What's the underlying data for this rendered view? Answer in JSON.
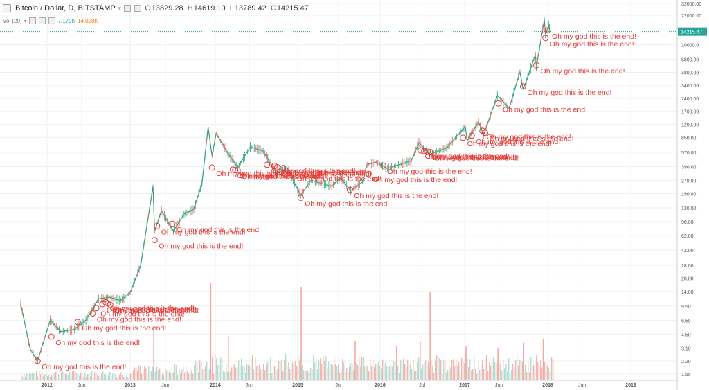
{
  "header": {
    "symbol": "Bitcoin / Dollar, D, BITSTAMP",
    "o_label": "O",
    "o": "13829.28",
    "h_label": "H",
    "h": "14619.10",
    "l_label": "L",
    "l": "13789.42",
    "c_label": "C",
    "c": "14215.47"
  },
  "volume": {
    "label": "Vol (20)",
    "v1": "7.179K",
    "v2": "14.028K"
  },
  "chart_data": {
    "type": "line",
    "scale": "log",
    "ylim": [
      1.4,
      34000
    ],
    "y_ticks": [
      "1.55",
      "2.20",
      "3.10",
      "4.50",
      "6.50",
      "9.50",
      "14.00",
      "20.00",
      "28.00",
      "42.00",
      "62.00",
      "90.00",
      "130.00",
      "190.00",
      "270.00",
      "390.00",
      "570.00",
      "850.00",
      "1200.00",
      "1700.00",
      "2400.00",
      "3400.00",
      "4800.00",
      "6800.00",
      "10000.0",
      "22000.00",
      "32000.00"
    ],
    "x_ticks": [
      {
        "date": "2012-01-01",
        "label": "2012"
      },
      {
        "date": "2012-06-01",
        "label": "Jun"
      },
      {
        "date": "2013-01-01",
        "label": "2013"
      },
      {
        "date": "2013-06-01",
        "label": "Jun"
      },
      {
        "date": "2014-01-01",
        "label": "2014"
      },
      {
        "date": "2014-06-01",
        "label": "Jun"
      },
      {
        "date": "2015-01-01",
        "label": "2015"
      },
      {
        "date": "2015-07-01",
        "label": "Jul"
      },
      {
        "date": "2016-01-01",
        "label": "2016"
      },
      {
        "date": "2016-07-01",
        "label": "Jul"
      },
      {
        "date": "2017-01-01",
        "label": "2017"
      },
      {
        "date": "2017-06-01",
        "label": "Jun"
      },
      {
        "date": "2018-01-01",
        "label": "2018"
      },
      {
        "date": "2018-06-01",
        "label": "Jun"
      },
      {
        "date": "2019-01-01",
        "label": "2019"
      }
    ],
    "last_price": "14215.47",
    "price_series": [
      {
        "x": "2011-09-01",
        "y": 10
      },
      {
        "x": "2011-10-15",
        "y": 3.0
      },
      {
        "x": "2011-11-18",
        "y": 2.2
      },
      {
        "x": "2011-12-20",
        "y": 4.0
      },
      {
        "x": "2012-01-15",
        "y": 6.5
      },
      {
        "x": "2012-03-01",
        "y": 4.8
      },
      {
        "x": "2012-05-01",
        "y": 5.1
      },
      {
        "x": "2012-06-20",
        "y": 6.5
      },
      {
        "x": "2012-08-15",
        "y": 11.5
      },
      {
        "x": "2012-10-01",
        "y": 12.0
      },
      {
        "x": "2012-11-20",
        "y": 11.0
      },
      {
        "x": "2013-01-01",
        "y": 13.5
      },
      {
        "x": "2013-02-15",
        "y": 28
      },
      {
        "x": "2013-04-09",
        "y": 230
      },
      {
        "x": "2013-04-16",
        "y": 70
      },
      {
        "x": "2013-05-15",
        "y": 120
      },
      {
        "x": "2013-07-05",
        "y": 70
      },
      {
        "x": "2013-08-20",
        "y": 110
      },
      {
        "x": "2013-10-01",
        "y": 125
      },
      {
        "x": "2013-11-05",
        "y": 250
      },
      {
        "x": "2013-12-01",
        "y": 1120
      },
      {
        "x": "2013-12-18",
        "y": 520
      },
      {
        "x": "2014-01-05",
        "y": 950
      },
      {
        "x": "2014-02-25",
        "y": 560
      },
      {
        "x": "2014-04-10",
        "y": 380
      },
      {
        "x": "2014-06-05",
        "y": 660
      },
      {
        "x": "2014-08-01",
        "y": 590
      },
      {
        "x": "2014-10-01",
        "y": 320
      },
      {
        "x": "2014-11-15",
        "y": 380
      },
      {
        "x": "2015-01-14",
        "y": 180
      },
      {
        "x": "2015-03-01",
        "y": 270
      },
      {
        "x": "2015-06-01",
        "y": 230
      },
      {
        "x": "2015-07-10",
        "y": 290
      },
      {
        "x": "2015-08-24",
        "y": 205
      },
      {
        "x": "2015-10-15",
        "y": 260
      },
      {
        "x": "2015-11-04",
        "y": 410
      },
      {
        "x": "2015-12-15",
        "y": 440
      },
      {
        "x": "2016-02-01",
        "y": 370
      },
      {
        "x": "2016-05-15",
        "y": 455
      },
      {
        "x": "2016-06-17",
        "y": 740
      },
      {
        "x": "2016-08-02",
        "y": 540
      },
      {
        "x": "2016-10-15",
        "y": 640
      },
      {
        "x": "2017-01-04",
        "y": 1130
      },
      {
        "x": "2017-01-12",
        "y": 780
      },
      {
        "x": "2017-03-03",
        "y": 1280
      },
      {
        "x": "2017-03-25",
        "y": 900
      },
      {
        "x": "2017-05-25",
        "y": 2600
      },
      {
        "x": "2017-07-16",
        "y": 1850
      },
      {
        "x": "2017-09-01",
        "y": 4900
      },
      {
        "x": "2017-09-15",
        "y": 3000
      },
      {
        "x": "2017-11-08",
        "y": 7700
      },
      {
        "x": "2017-11-12",
        "y": 5600
      },
      {
        "x": "2017-12-17",
        "y": 19500
      },
      {
        "x": "2017-12-22",
        "y": 13000
      },
      {
        "x": "2018-01-06",
        "y": 17000
      },
      {
        "x": "2018-01-11",
        "y": 14215
      }
    ],
    "volume_series": {
      "type": "bar",
      "spikes": [
        {
          "x": "2013-04-10",
          "v": 0.55
        },
        {
          "x": "2013-12-10",
          "v": 1.0
        },
        {
          "x": "2014-02-25",
          "v": 0.45
        },
        {
          "x": "2015-01-14",
          "v": 0.95
        },
        {
          "x": "2015-09-10",
          "v": 0.4
        },
        {
          "x": "2016-03-10",
          "v": 0.35
        },
        {
          "x": "2016-06-20",
          "v": 0.4
        },
        {
          "x": "2016-08-02",
          "v": 0.9
        },
        {
          "x": "2017-01-05",
          "v": 0.35
        },
        {
          "x": "2017-05-25",
          "v": 0.32
        },
        {
          "x": "2017-09-15",
          "v": 0.38
        },
        {
          "x": "2017-12-10",
          "v": 0.42
        }
      ]
    },
    "annotation_text": "Oh my god this is the end!",
    "annotations": [
      {
        "x": "2011-11-18",
        "y": 2.2
      },
      {
        "x": "2012-01-20",
        "y": 4.2
      },
      {
        "x": "2012-05-15",
        "y": 6.2
      },
      {
        "x": "2012-07-20",
        "y": 7.8
      },
      {
        "x": "2012-08-05",
        "y": 9.0
      },
      {
        "x": "2012-09-01",
        "y": 10.0
      },
      {
        "x": "2012-09-15",
        "y": 10.5
      },
      {
        "x": "2012-09-25",
        "y": 10.2
      },
      {
        "x": "2012-10-05",
        "y": 9.8
      },
      {
        "x": "2013-04-16",
        "y": 55
      },
      {
        "x": "2013-04-26",
        "y": 80
      },
      {
        "x": "2013-07-01",
        "y": 85
      },
      {
        "x": "2013-12-18",
        "y": 380
      },
      {
        "x": "2014-03-20",
        "y": 360
      },
      {
        "x": "2014-03-30",
        "y": 355
      },
      {
        "x": "2014-04-10",
        "y": 352
      },
      {
        "x": "2014-08-18",
        "y": 410
      },
      {
        "x": "2014-09-20",
        "y": 395
      },
      {
        "x": "2014-10-02",
        "y": 385
      },
      {
        "x": "2014-10-28",
        "y": 375
      },
      {
        "x": "2014-12-10",
        "y": 330
      },
      {
        "x": "2015-01-14",
        "y": 170
      },
      {
        "x": "2015-08-20",
        "y": 210
      },
      {
        "x": "2015-11-11",
        "y": 320
      },
      {
        "x": "2016-01-15",
        "y": 400
      },
      {
        "x": "2016-06-25",
        "y": 600
      },
      {
        "x": "2016-07-10",
        "y": 590
      },
      {
        "x": "2016-07-25",
        "y": 580
      },
      {
        "x": "2016-08-05",
        "y": 575
      },
      {
        "x": "2016-12-25",
        "y": 840
      },
      {
        "x": "2017-02-01",
        "y": 890
      },
      {
        "x": "2017-03-20",
        "y": 1010
      },
      {
        "x": "2017-04-01",
        "y": 960
      },
      {
        "x": "2017-05-30",
        "y": 2100
      },
      {
        "x": "2017-09-15",
        "y": 3300
      },
      {
        "x": "2017-11-12",
        "y": 5800
      },
      {
        "x": "2017-12-22",
        "y": 12000
      },
      {
        "x": "2018-01-01",
        "y": 14700
      }
    ]
  }
}
